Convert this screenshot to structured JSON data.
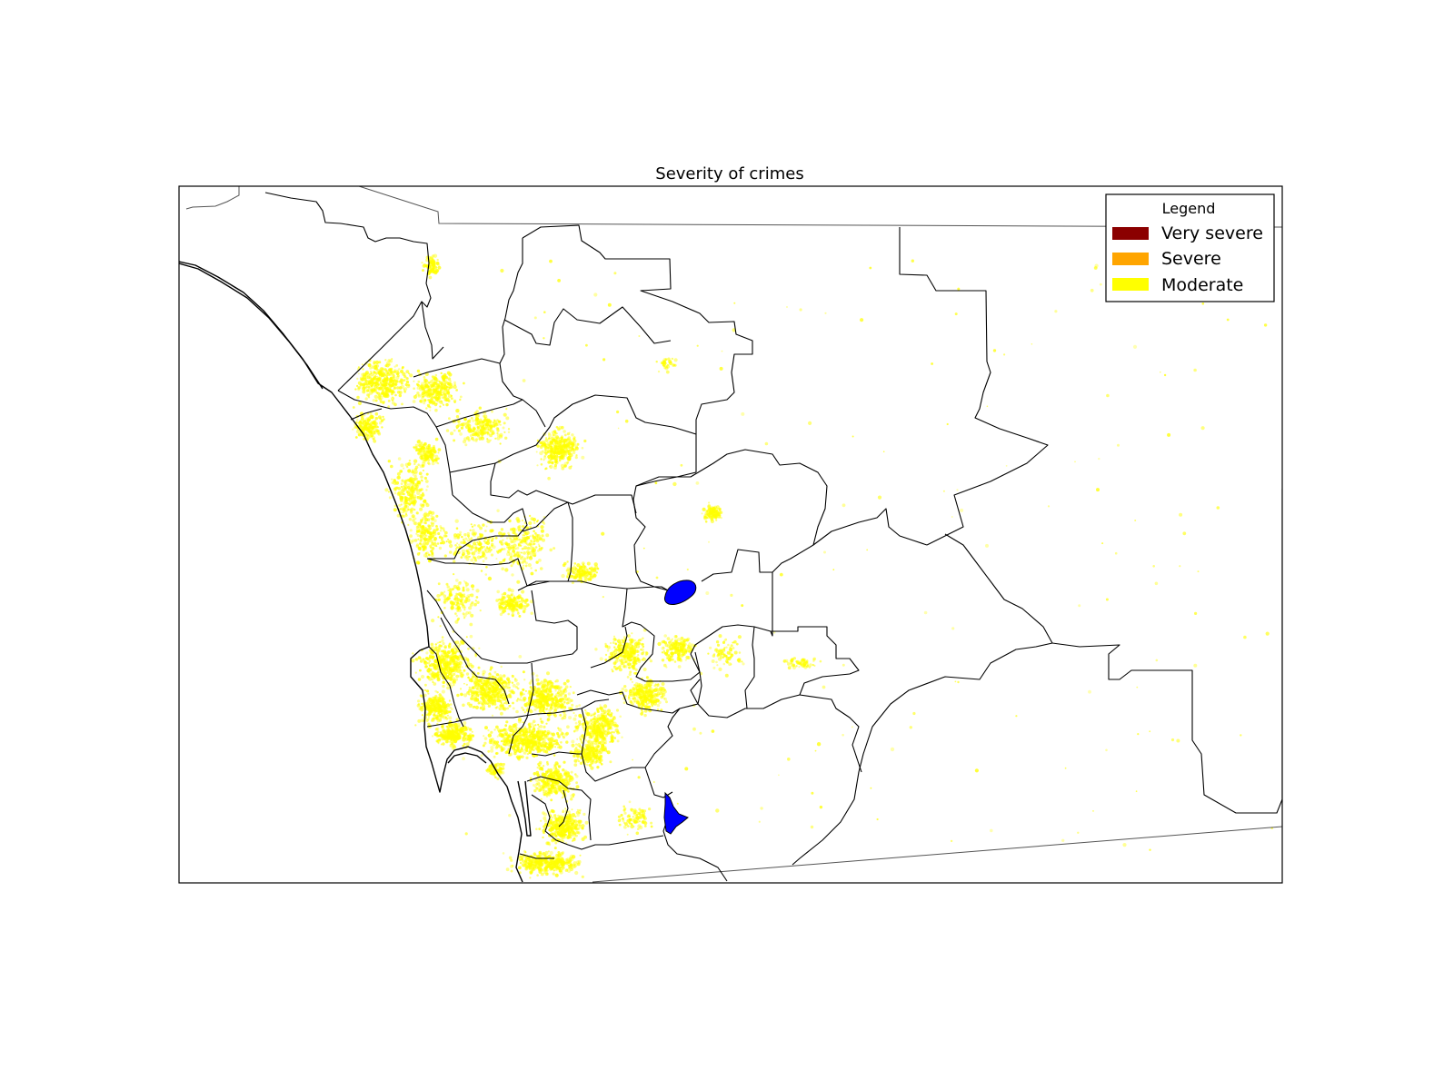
{
  "title": "Severity of crimes",
  "legend": {
    "title": "Legend",
    "placement": "top-right",
    "items": [
      {
        "label": "Very severe",
        "color": "#8b0000"
      },
      {
        "label": "Severe",
        "color": "#ffa500"
      },
      {
        "label": "Moderate",
        "color": "#ffff00"
      }
    ]
  },
  "colors": {
    "moderate_points": "#ffff00",
    "water_bodies": "#0000ff",
    "boundaries": "#000000",
    "background": "#ffffff"
  }
}
